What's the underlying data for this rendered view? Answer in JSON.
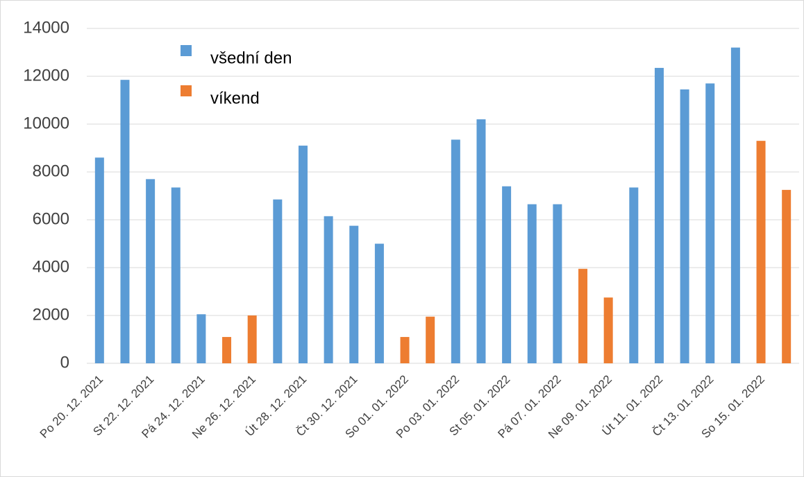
{
  "chart_data": {
    "type": "bar",
    "categories": [
      "Po 20. 12. 2021",
      null,
      "St 22. 12. 2021",
      null,
      "Pá 24. 12. 2021",
      null,
      "Ne 26. 12. 2021",
      null,
      "Út 28. 12. 2021",
      null,
      "Čt 30. 12. 2021",
      null,
      "So 01. 01. 2022",
      null,
      "Po 03. 01. 2022",
      null,
      "St 05. 01. 2022",
      null,
      "Pá 07. 01. 2022",
      null,
      "Ne 09. 01. 2022",
      null,
      "Út 11. 01. 2022",
      null,
      "Čt 13. 01. 2022",
      null,
      "So 15. 01. 2022",
      null
    ],
    "series": [
      {
        "name": "všední den",
        "color": "#5b9bd5",
        "values": [
          8600,
          11850,
          7700,
          7350,
          2050,
          null,
          null,
          6850,
          9100,
          6150,
          5750,
          5000,
          null,
          null,
          9350,
          10200,
          7400,
          6650,
          6650,
          null,
          null,
          7350,
          12350,
          11450,
          11700,
          13200,
          null,
          null
        ]
      },
      {
        "name": "víkend",
        "color": "#ed7d31",
        "values": [
          null,
          null,
          null,
          null,
          null,
          1100,
          2000,
          null,
          null,
          null,
          null,
          null,
          1100,
          1950,
          null,
          null,
          null,
          null,
          null,
          3950,
          2750,
          null,
          null,
          null,
          null,
          null,
          9300,
          7250
        ]
      }
    ],
    "ylim": [
      0,
      14000
    ],
    "yticks": [
      0,
      2000,
      4000,
      6000,
      8000,
      10000,
      12000,
      14000
    ],
    "grid": true,
    "legend": "top-left"
  }
}
